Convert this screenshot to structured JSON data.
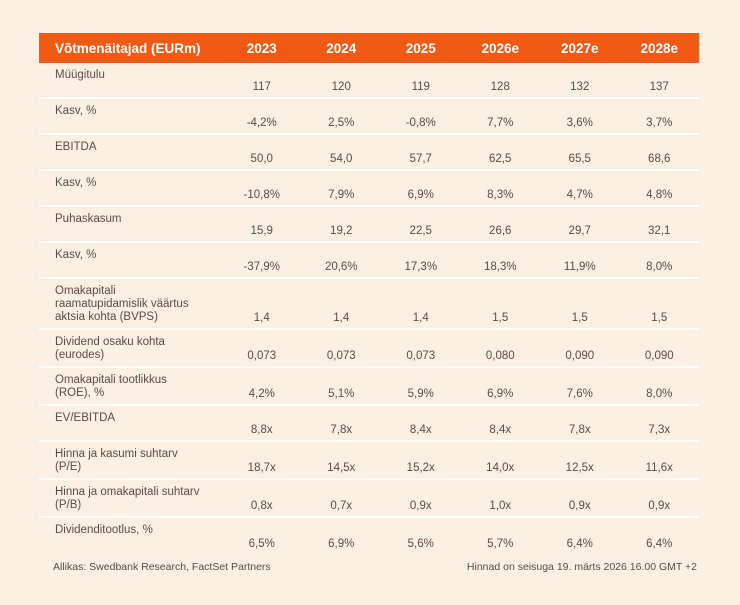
{
  "table": {
    "header": {
      "label": "Võtmenäitajad (EURm)",
      "columns": [
        "2023",
        "2024",
        "2025",
        "2026e",
        "2027e",
        "2028e"
      ]
    },
    "rows": [
      {
        "label": "Müügitulu",
        "values": [
          "117",
          "120",
          "119",
          "128",
          "132",
          "137"
        ]
      },
      {
        "label": "Kasv, %",
        "values": [
          "-4,2%",
          "2,5%",
          "-0,8%",
          "7,7%",
          "3,6%",
          "3,7%"
        ]
      },
      {
        "label": "EBITDA",
        "values": [
          "50,0",
          "54,0",
          "57,7",
          "62,5",
          "65,5",
          "68,6"
        ]
      },
      {
        "label": "Kasv, %",
        "values": [
          "-10,8%",
          "7,9%",
          "6,9%",
          "8,3%",
          "4,7%",
          "4,8%"
        ]
      },
      {
        "label": "Puhaskasum",
        "values": [
          "15,9",
          "19,2",
          "22,5",
          "26,6",
          "29,7",
          "32,1"
        ]
      },
      {
        "label": "Kasv, %",
        "values": [
          "-37,9%",
          "20,6%",
          "17,3%",
          "18,3%",
          "11,9%",
          "8,0%"
        ]
      },
      {
        "label": "Omakapitali raamatupidamislik väärtus aktsia kohta (BVPS)",
        "values": [
          "1,4",
          "1,4",
          "1,4",
          "1,5",
          "1,5",
          "1,5"
        ]
      },
      {
        "label": "Dividend osaku kohta (eurodes)",
        "values": [
          "0,073",
          "0,073",
          "0,073",
          "0,080",
          "0,090",
          "0,090"
        ]
      },
      {
        "label": "Omakapitali tootlikkus (ROE), %",
        "values": [
          "4,2%",
          "5,1%",
          "5,9%",
          "6,9%",
          "7,6%",
          "8,0%"
        ]
      },
      {
        "label": "EV/EBITDA",
        "values": [
          "8,8x",
          "7,8x",
          "8,4x",
          "8,4x",
          "7,8x",
          "7,3x"
        ]
      },
      {
        "label": "Hinna ja kasumi suhtarv (P/E)",
        "values": [
          "18,7x",
          "14,5x",
          "15,2x",
          "14,0x",
          "12,5x",
          "11,6x"
        ]
      },
      {
        "label": "Hinna ja omakapitali suhtarv (P/B)",
        "values": [
          "0,8x",
          "0,7x",
          "0,9x",
          "1,0x",
          "0,9x",
          "0,9x"
        ]
      },
      {
        "label": "Dividenditootlus, %",
        "values": [
          "6,5%",
          "6,9%",
          "5,6%",
          "5,7%",
          "6,4%",
          "6,4%"
        ]
      }
    ],
    "footer": {
      "source": "Allikas: Swedbank Research, FactSet Partners",
      "note": "Hinnad on seisuga 19. märts 2026 16.00 GMT +2"
    },
    "colors": {
      "accent_orange": "#f05a14",
      "background_cream": "#fbf0e3",
      "text_brown": "#5e4a44"
    }
  }
}
